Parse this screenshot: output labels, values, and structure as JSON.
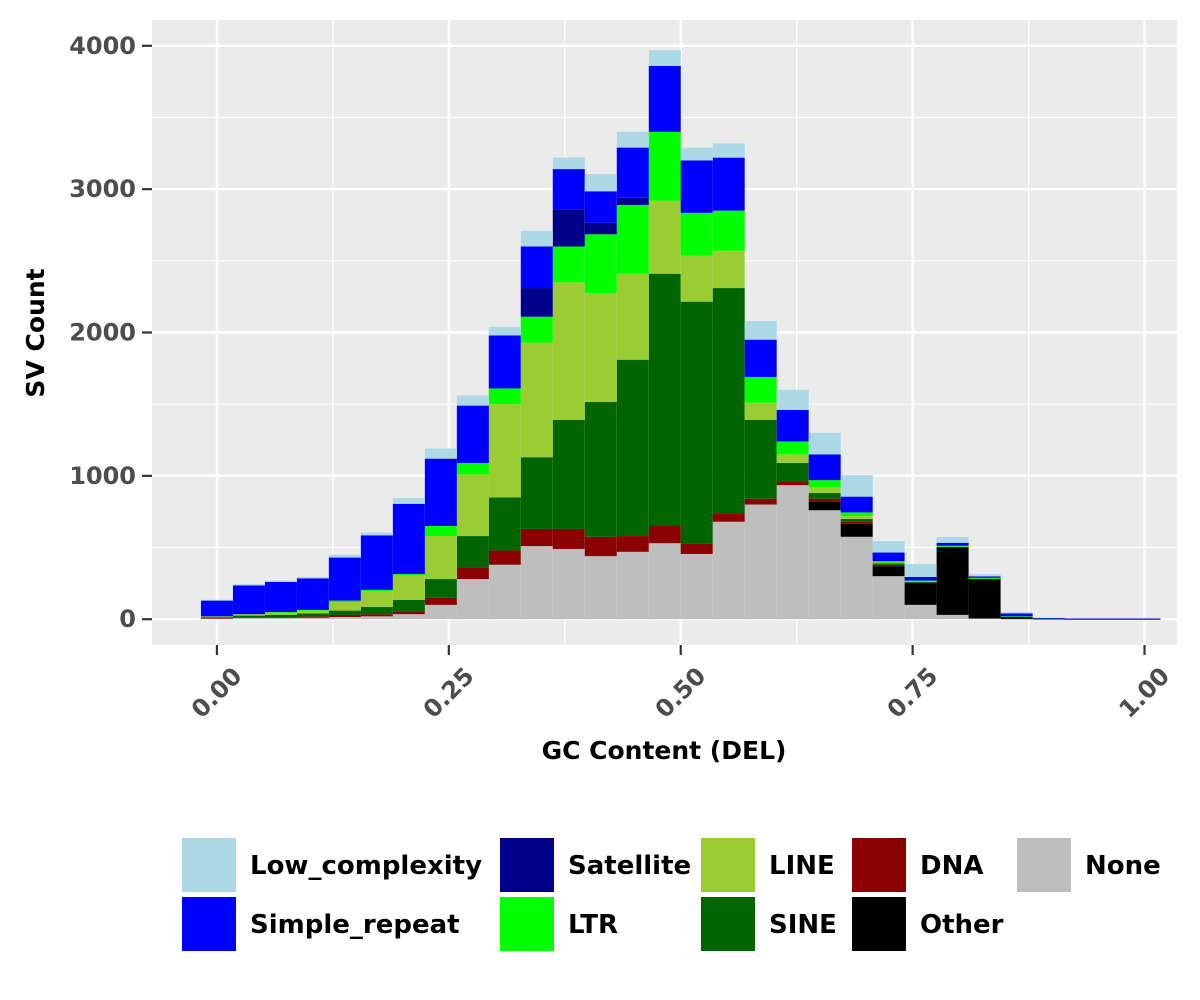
{
  "chart_data": {
    "type": "bar",
    "stacked": true,
    "title": "",
    "xlabel": "GC Content (DEL)",
    "ylabel": "SV Count",
    "xlim": [
      -0.07,
      1.035
    ],
    "ylim": [
      -180,
      4180
    ],
    "xticks": [
      0.0,
      0.25,
      0.5,
      0.75,
      1.0
    ],
    "xtick_labels": [
      "0.00",
      "0.25",
      "0.50",
      "0.75",
      "1.00"
    ],
    "yticks": [
      0,
      1000,
      2000,
      3000,
      4000
    ],
    "ytick_labels": [
      "0",
      "1000",
      "2000",
      "3000",
      "4000"
    ],
    "grid": true,
    "legend_position": "bottom",
    "bin_width": 0.03448,
    "bin_centers": [
      0.0,
      0.0345,
      0.069,
      0.1034,
      0.1379,
      0.1724,
      0.2069,
      0.2414,
      0.2759,
      0.3103,
      0.3448,
      0.3793,
      0.4138,
      0.4483,
      0.4828,
      0.5172,
      0.5517,
      0.5862,
      0.6207,
      0.6552,
      0.6897,
      0.7241,
      0.7586,
      0.7931,
      0.8276,
      0.8621,
      0.8966,
      0.931,
      0.9655,
      1.0
    ],
    "series": [
      {
        "name": "None",
        "color": "#BEBEBE",
        "values": [
          5,
          10,
          10,
          10,
          15,
          20,
          35,
          100,
          280,
          380,
          510,
          490,
          440,
          470,
          530,
          455,
          680,
          800,
          935,
          760,
          575,
          300,
          100,
          30,
          5,
          2,
          0,
          0,
          0,
          0
        ]
      },
      {
        "name": "Other",
        "color": "#000000",
        "values": [
          0,
          0,
          0,
          0,
          0,
          0,
          0,
          0,
          0,
          0,
          0,
          0,
          0,
          0,
          0,
          0,
          0,
          0,
          0,
          60,
          90,
          70,
          150,
          470,
          275,
          15,
          3,
          2,
          2,
          2
        ]
      },
      {
        "name": "DNA",
        "color": "#8B0000",
        "values": [
          5,
          5,
          5,
          10,
          15,
          15,
          20,
          50,
          80,
          100,
          120,
          140,
          135,
          110,
          120,
          70,
          60,
          40,
          25,
          20,
          15,
          10,
          5,
          3,
          2,
          0,
          0,
          0,
          0,
          0
        ]
      },
      {
        "name": "SINE",
        "color": "#006400",
        "values": [
          5,
          10,
          15,
          20,
          30,
          50,
          80,
          130,
          220,
          370,
          500,
          760,
          940,
          1230,
          1760,
          1690,
          1570,
          550,
          130,
          40,
          20,
          10,
          5,
          5,
          3,
          0,
          0,
          0,
          0,
          0
        ]
      },
      {
        "name": "LINE",
        "color": "#9ACD32",
        "values": [
          5,
          10,
          15,
          20,
          60,
          110,
          170,
          300,
          430,
          650,
          800,
          960,
          760,
          600,
          510,
          320,
          260,
          120,
          60,
          40,
          20,
          5,
          5,
          2,
          2,
          0,
          0,
          0,
          0,
          0
        ]
      },
      {
        "name": "LTR",
        "color": "#00FF00",
        "values": [
          0,
          0,
          5,
          5,
          10,
          10,
          10,
          70,
          80,
          110,
          180,
          250,
          410,
          480,
          480,
          300,
          280,
          180,
          90,
          50,
          25,
          10,
          5,
          3,
          2,
          3,
          3,
          0,
          0,
          0
        ]
      },
      {
        "name": "Satellite",
        "color": "#00008B",
        "values": [
          0,
          0,
          0,
          0,
          0,
          0,
          0,
          0,
          0,
          0,
          200,
          260,
          80,
          50,
          0,
          0,
          0,
          0,
          0,
          0,
          0,
          0,
          0,
          0,
          0,
          0,
          0,
          0,
          0,
          0
        ]
      },
      {
        "name": "Simple_repeat",
        "color": "#0000FF",
        "values": [
          110,
          200,
          210,
          220,
          300,
          380,
          490,
          470,
          400,
          370,
          290,
          280,
          220,
          350,
          460,
          365,
          370,
          260,
          220,
          180,
          110,
          60,
          25,
          20,
          10,
          20,
          3,
          3,
          3,
          3
        ]
      },
      {
        "name": "Low_complexity",
        "color": "#ADD8E6",
        "values": [
          5,
          10,
          10,
          10,
          20,
          20,
          40,
          70,
          70,
          60,
          110,
          80,
          120,
          110,
          110,
          90,
          100,
          130,
          140,
          150,
          150,
          80,
          90,
          40,
          15,
          10,
          0,
          0,
          0,
          0
        ]
      }
    ],
    "legend": {
      "columns": [
        [
          "Low_complexity",
          "Simple_repeat"
        ],
        [
          "Satellite",
          "LTR"
        ],
        [
          "LINE",
          "SINE"
        ],
        [
          "DNA",
          "Other"
        ],
        [
          "None"
        ]
      ]
    },
    "panel_background": "#EBEBEB",
    "grid_color": "#FFFFFF"
  }
}
